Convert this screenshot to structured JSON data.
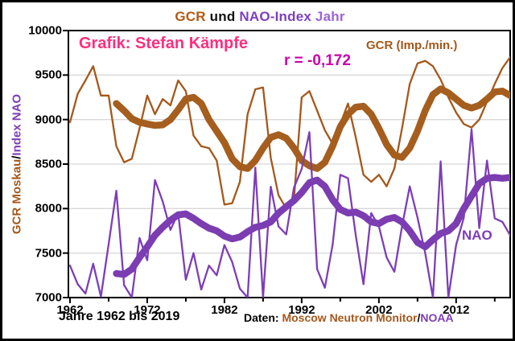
{
  "title": {
    "part_gcr": "GCR",
    "part_und": " und ",
    "part_nao": "NAO-Index",
    "part_jahr": " Jahr"
  },
  "annotations": {
    "credit": "Grafik: Stefan Kämpfe",
    "correlation": "r = -0,172",
    "gcr_series_label": "GCR (Imp./min.)",
    "nao_series_label": "NAO"
  },
  "y_axis": {
    "label_gcr_part": "GCR Moskau",
    "label_separator": "/",
    "label_nao_part": "Index NAO",
    "ticks": [
      "10000",
      "9500",
      "9000",
      "8500",
      "8000",
      "7500",
      "7000"
    ]
  },
  "x_axis": {
    "ticks": [
      "1962",
      "1972",
      "1982",
      "1992",
      "2002",
      "2012"
    ]
  },
  "footer": {
    "range_label": "Jahre 1962 bis 2019",
    "daten_label": "Daten: ",
    "source_gcr": "Moscow Neutron Monitor",
    "source_separator": "/",
    "source_nao": "NOAA"
  },
  "colors": {
    "gcr_brown": "#A4581B",
    "gcr_brown_thick": "#A55E1E",
    "nao_purple": "#7C3EB8",
    "nao_purple_thick": "#7B3DB0",
    "title_gcr": "#B05A12",
    "title_und": "#111111",
    "title_nao": "#7D3FBF",
    "title_jahr": "#9B63D8",
    "credit_pink": "#FF2E7E",
    "r_magenta": "#CC00AA",
    "black": "#000000",
    "gridline": "#D8D8D8"
  },
  "chart_data": {
    "type": "line",
    "title": "GCR und NAO-Index Jahr",
    "x_range": [
      1962,
      2019
    ],
    "ylim": [
      7000,
      10000
    ],
    "ytick_step": 500,
    "xtick_major_step": 10,
    "xtick_minor_step": 5,
    "grid": "horizontal",
    "x": [
      1962,
      1963,
      1964,
      1965,
      1966,
      1967,
      1968,
      1969,
      1970,
      1971,
      1972,
      1973,
      1974,
      1975,
      1976,
      1977,
      1978,
      1979,
      1980,
      1981,
      1982,
      1983,
      1984,
      1985,
      1986,
      1987,
      1988,
      1989,
      1990,
      1991,
      1992,
      1993,
      1994,
      1995,
      1996,
      1997,
      1998,
      1999,
      2000,
      2001,
      2002,
      2003,
      2004,
      2005,
      2006,
      2007,
      2008,
      2009,
      2010,
      2011,
      2012,
      2013,
      2014,
      2015,
      2016,
      2017,
      2018,
      2019
    ],
    "series": [
      {
        "name": "GCR yearly (Imp./min.)",
        "color_key": "gcr_brown",
        "width": 2.3,
        "values": [
          8970,
          9290,
          9440,
          9600,
          9270,
          9270,
          8700,
          8520,
          8560,
          8900,
          9270,
          9060,
          9230,
          9160,
          9440,
          9320,
          8820,
          8700,
          8680,
          8540,
          8045,
          8060,
          8300,
          9060,
          9340,
          9360,
          8570,
          8150,
          8000,
          8100,
          9250,
          9320,
          9100,
          8880,
          8730,
          8950,
          9180,
          8800,
          8380,
          8300,
          8380,
          8250,
          8450,
          8900,
          9400,
          9630,
          9660,
          9600,
          9450,
          9250,
          9080,
          8950,
          8910,
          9000,
          9200,
          9400,
          9580,
          9700
        ]
      },
      {
        "name": "GCR smoothed",
        "color_key": "gcr_brown_thick",
        "width": 8.5,
        "values": [
          null,
          null,
          null,
          null,
          null,
          null,
          9180,
          9100,
          9010,
          8970,
          8950,
          8935,
          8940,
          9000,
          9110,
          9230,
          9250,
          9180,
          9000,
          8870,
          8740,
          8560,
          8470,
          8450,
          8540,
          8680,
          8800,
          8830,
          8790,
          8680,
          8540,
          8480,
          8450,
          8520,
          8700,
          8920,
          9060,
          9140,
          9150,
          9060,
          8900,
          8720,
          8600,
          8575,
          8680,
          8870,
          9100,
          9280,
          9345,
          9300,
          9230,
          9160,
          9130,
          9160,
          9230,
          9310,
          9320,
          9270
        ]
      },
      {
        "name": "NAO smoothed",
        "color_key": "nao_purple_thick",
        "width": 8.5,
        "values": [
          null,
          null,
          null,
          null,
          null,
          null,
          7270,
          7260,
          7320,
          7450,
          7570,
          7700,
          7790,
          7870,
          7930,
          7940,
          7890,
          7830,
          7780,
          7750,
          7690,
          7660,
          7680,
          7740,
          7790,
          7810,
          7850,
          7950,
          8020,
          8090,
          8180,
          8290,
          8320,
          8250,
          8100,
          7990,
          7950,
          7960,
          7920,
          7850,
          7830,
          7880,
          7900,
          7850,
          7750,
          7620,
          7570,
          7650,
          7720,
          7750,
          7830,
          8000,
          8140,
          8280,
          8340,
          8350,
          8340,
          8350
        ]
      },
      {
        "name": "NAO yearly (Index, skaliert)",
        "color_key": "nao_purple",
        "width": 2.3,
        "values": [
          7360,
          7150,
          7045,
          7380,
          7010,
          7600,
          8200,
          7140,
          7000,
          7670,
          7420,
          8320,
          8080,
          7760,
          7950,
          7200,
          7500,
          7090,
          7360,
          7250,
          7590,
          7400,
          7100,
          7000,
          8460,
          7000,
          8245,
          7800,
          7710,
          8235,
          8445,
          8860,
          7320,
          7110,
          7590,
          8380,
          8340,
          7700,
          7150,
          7950,
          7800,
          7450,
          7290,
          7800,
          8250,
          7900,
          7500,
          7000,
          8530,
          7000,
          7590,
          7900,
          8890,
          7780,
          8540,
          7890,
          7850,
          7700
        ]
      }
    ]
  }
}
